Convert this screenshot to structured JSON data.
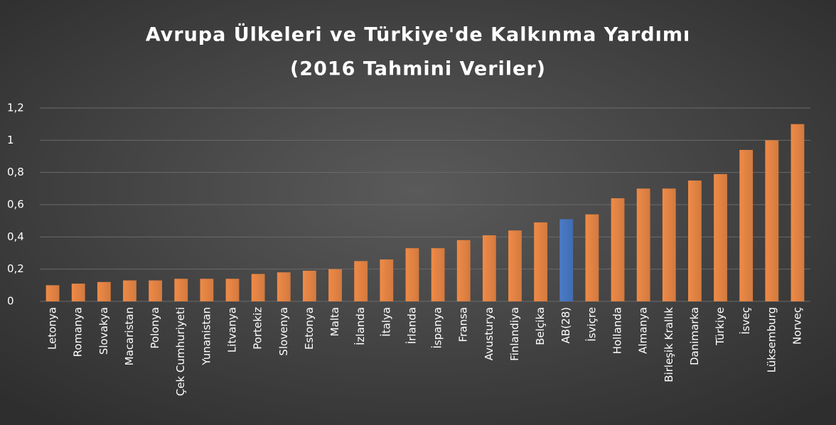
{
  "chart_data": {
    "type": "bar",
    "title": "Avrupa Ülkeleri ve Türkiye'de Kalkınma Yardımı",
    "subtitle": "(2016 Tahmini Veriler)",
    "categories": [
      "Letonya",
      "Romanya",
      "Slovakya",
      "Macaristan",
      "Polonya",
      "Çek Cumhuriyeti",
      "Yunanistan",
      "Litvanya",
      "Portekiz",
      "Slovenya",
      "Estonya",
      "Malta",
      "İzlanda",
      "İtalya",
      "İrlanda",
      "İspanya",
      "Fransa",
      "Avusturya",
      "Finlandiya",
      "Belçika",
      "AB(28)",
      "İsviçre",
      "Hollanda",
      "Almanya",
      "Birleşik Krallık",
      "Danimarka",
      "Türkiye",
      "İsveç",
      "Lüksemburg",
      "Norveç"
    ],
    "values": [
      0.1,
      0.11,
      0.12,
      0.13,
      0.13,
      0.14,
      0.14,
      0.14,
      0.17,
      0.18,
      0.19,
      0.2,
      0.25,
      0.26,
      0.33,
      0.33,
      0.38,
      0.41,
      0.44,
      0.49,
      0.51,
      0.54,
      0.64,
      0.7,
      0.7,
      0.75,
      0.79,
      0.94,
      1.0,
      1.1
    ],
    "color": "#ef8a47",
    "highlight": {
      "index": 20,
      "color": "#4a7bc9"
    },
    "ylim": [
      0,
      1.2
    ],
    "yticks": [
      0,
      {
        "value": 0.2,
        "label": "0,2"
      },
      {
        "value": 0.4,
        "label": "0,4"
      },
      {
        "value": 0.6,
        "label": "0,6"
      },
      {
        "value": 0.8,
        "label": "0,8"
      },
      1,
      {
        "value": 1.2,
        "label": "1,2"
      }
    ],
    "grid": true
  }
}
